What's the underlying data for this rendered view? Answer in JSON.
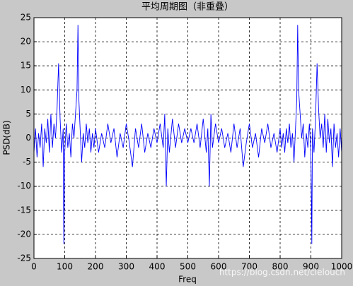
{
  "chart_data": {
    "type": "line",
    "title": "平均周期图（非重叠）",
    "xlabel": "Freq",
    "ylabel": "PSD(dB)",
    "annotation": "https://blog.csdn.net/clelouch",
    "color": "#0000ff",
    "grid": true,
    "xlim": [
      0,
      1000
    ],
    "xticks": [
      0,
      100,
      200,
      300,
      400,
      500,
      600,
      700,
      800,
      900,
      1000
    ],
    "ylim": [
      -25,
      25
    ],
    "yticks": [
      -25,
      -20,
      -15,
      -10,
      -5,
      0,
      5,
      10,
      15,
      20,
      25
    ],
    "x": [
      0,
      5,
      10,
      15,
      20,
      25,
      30,
      35,
      40,
      45,
      50,
      55,
      60,
      65,
      70,
      75,
      80,
      85,
      90,
      95,
      97,
      100,
      105,
      110,
      115,
      120,
      125,
      130,
      135,
      140,
      143,
      146,
      150,
      155,
      160,
      165,
      170,
      175,
      180,
      185,
      190,
      195,
      200,
      210,
      220,
      230,
      240,
      250,
      260,
      270,
      280,
      290,
      300,
      310,
      320,
      330,
      340,
      350,
      360,
      370,
      380,
      390,
      400,
      410,
      420,
      425,
      430,
      435,
      440,
      450,
      460,
      470,
      480,
      490,
      500,
      510,
      520,
      530,
      540,
      550,
      560,
      565,
      570,
      575,
      580,
      590,
      600,
      610,
      620,
      630,
      640,
      650,
      660,
      670,
      680,
      690,
      700,
      710,
      720,
      730,
      740,
      750,
      760,
      770,
      780,
      790,
      800,
      805,
      810,
      815,
      820,
      825,
      830,
      835,
      840,
      845,
      850,
      854,
      857,
      860,
      865,
      870,
      875,
      880,
      885,
      890,
      895,
      900,
      903,
      905,
      910,
      915,
      920,
      925,
      930,
      935,
      940,
      945,
      950,
      955,
      960,
      965,
      970,
      975,
      980,
      985,
      990,
      995,
      1000
    ],
    "values": [
      -3,
      2,
      -4,
      1,
      -2,
      3,
      -6,
      2,
      -1,
      4,
      -3,
      5,
      -2,
      3,
      0,
      6,
      15.5,
      4,
      -3,
      2,
      -22,
      -3,
      3,
      -2,
      1,
      -4,
      3,
      0,
      5,
      10,
      23.5,
      8,
      2,
      -5,
      1,
      -2,
      3,
      -1,
      2,
      -3,
      1,
      -2,
      2,
      -3,
      1,
      -2,
      3,
      -1,
      2,
      -4,
      1,
      -2,
      3,
      -1,
      -6,
      2,
      -2,
      3,
      -3,
      1,
      -2,
      2,
      -1,
      3,
      -2,
      5,
      -10,
      2,
      -3,
      4,
      -2,
      3,
      -1,
      2,
      -1,
      2,
      -1,
      3,
      -2,
      4,
      -3,
      2,
      -10,
      5,
      -2,
      3,
      -1,
      2,
      -2,
      1,
      -3,
      3,
      -2,
      2,
      -6,
      -1,
      3,
      -2,
      1,
      -4,
      2,
      -1,
      3,
      -2,
      1,
      -3,
      2,
      -2,
      1,
      -3,
      2,
      -1,
      3,
      -2,
      1,
      -5,
      2,
      8,
      23.5,
      10,
      5,
      0,
      3,
      -4,
      1,
      -2,
      3,
      -3,
      -22,
      2,
      -3,
      4,
      15.5,
      6,
      0,
      3,
      -2,
      5,
      -3,
      4,
      -1,
      2,
      -6,
      3,
      -2,
      1,
      -4,
      2,
      -3
    ]
  }
}
